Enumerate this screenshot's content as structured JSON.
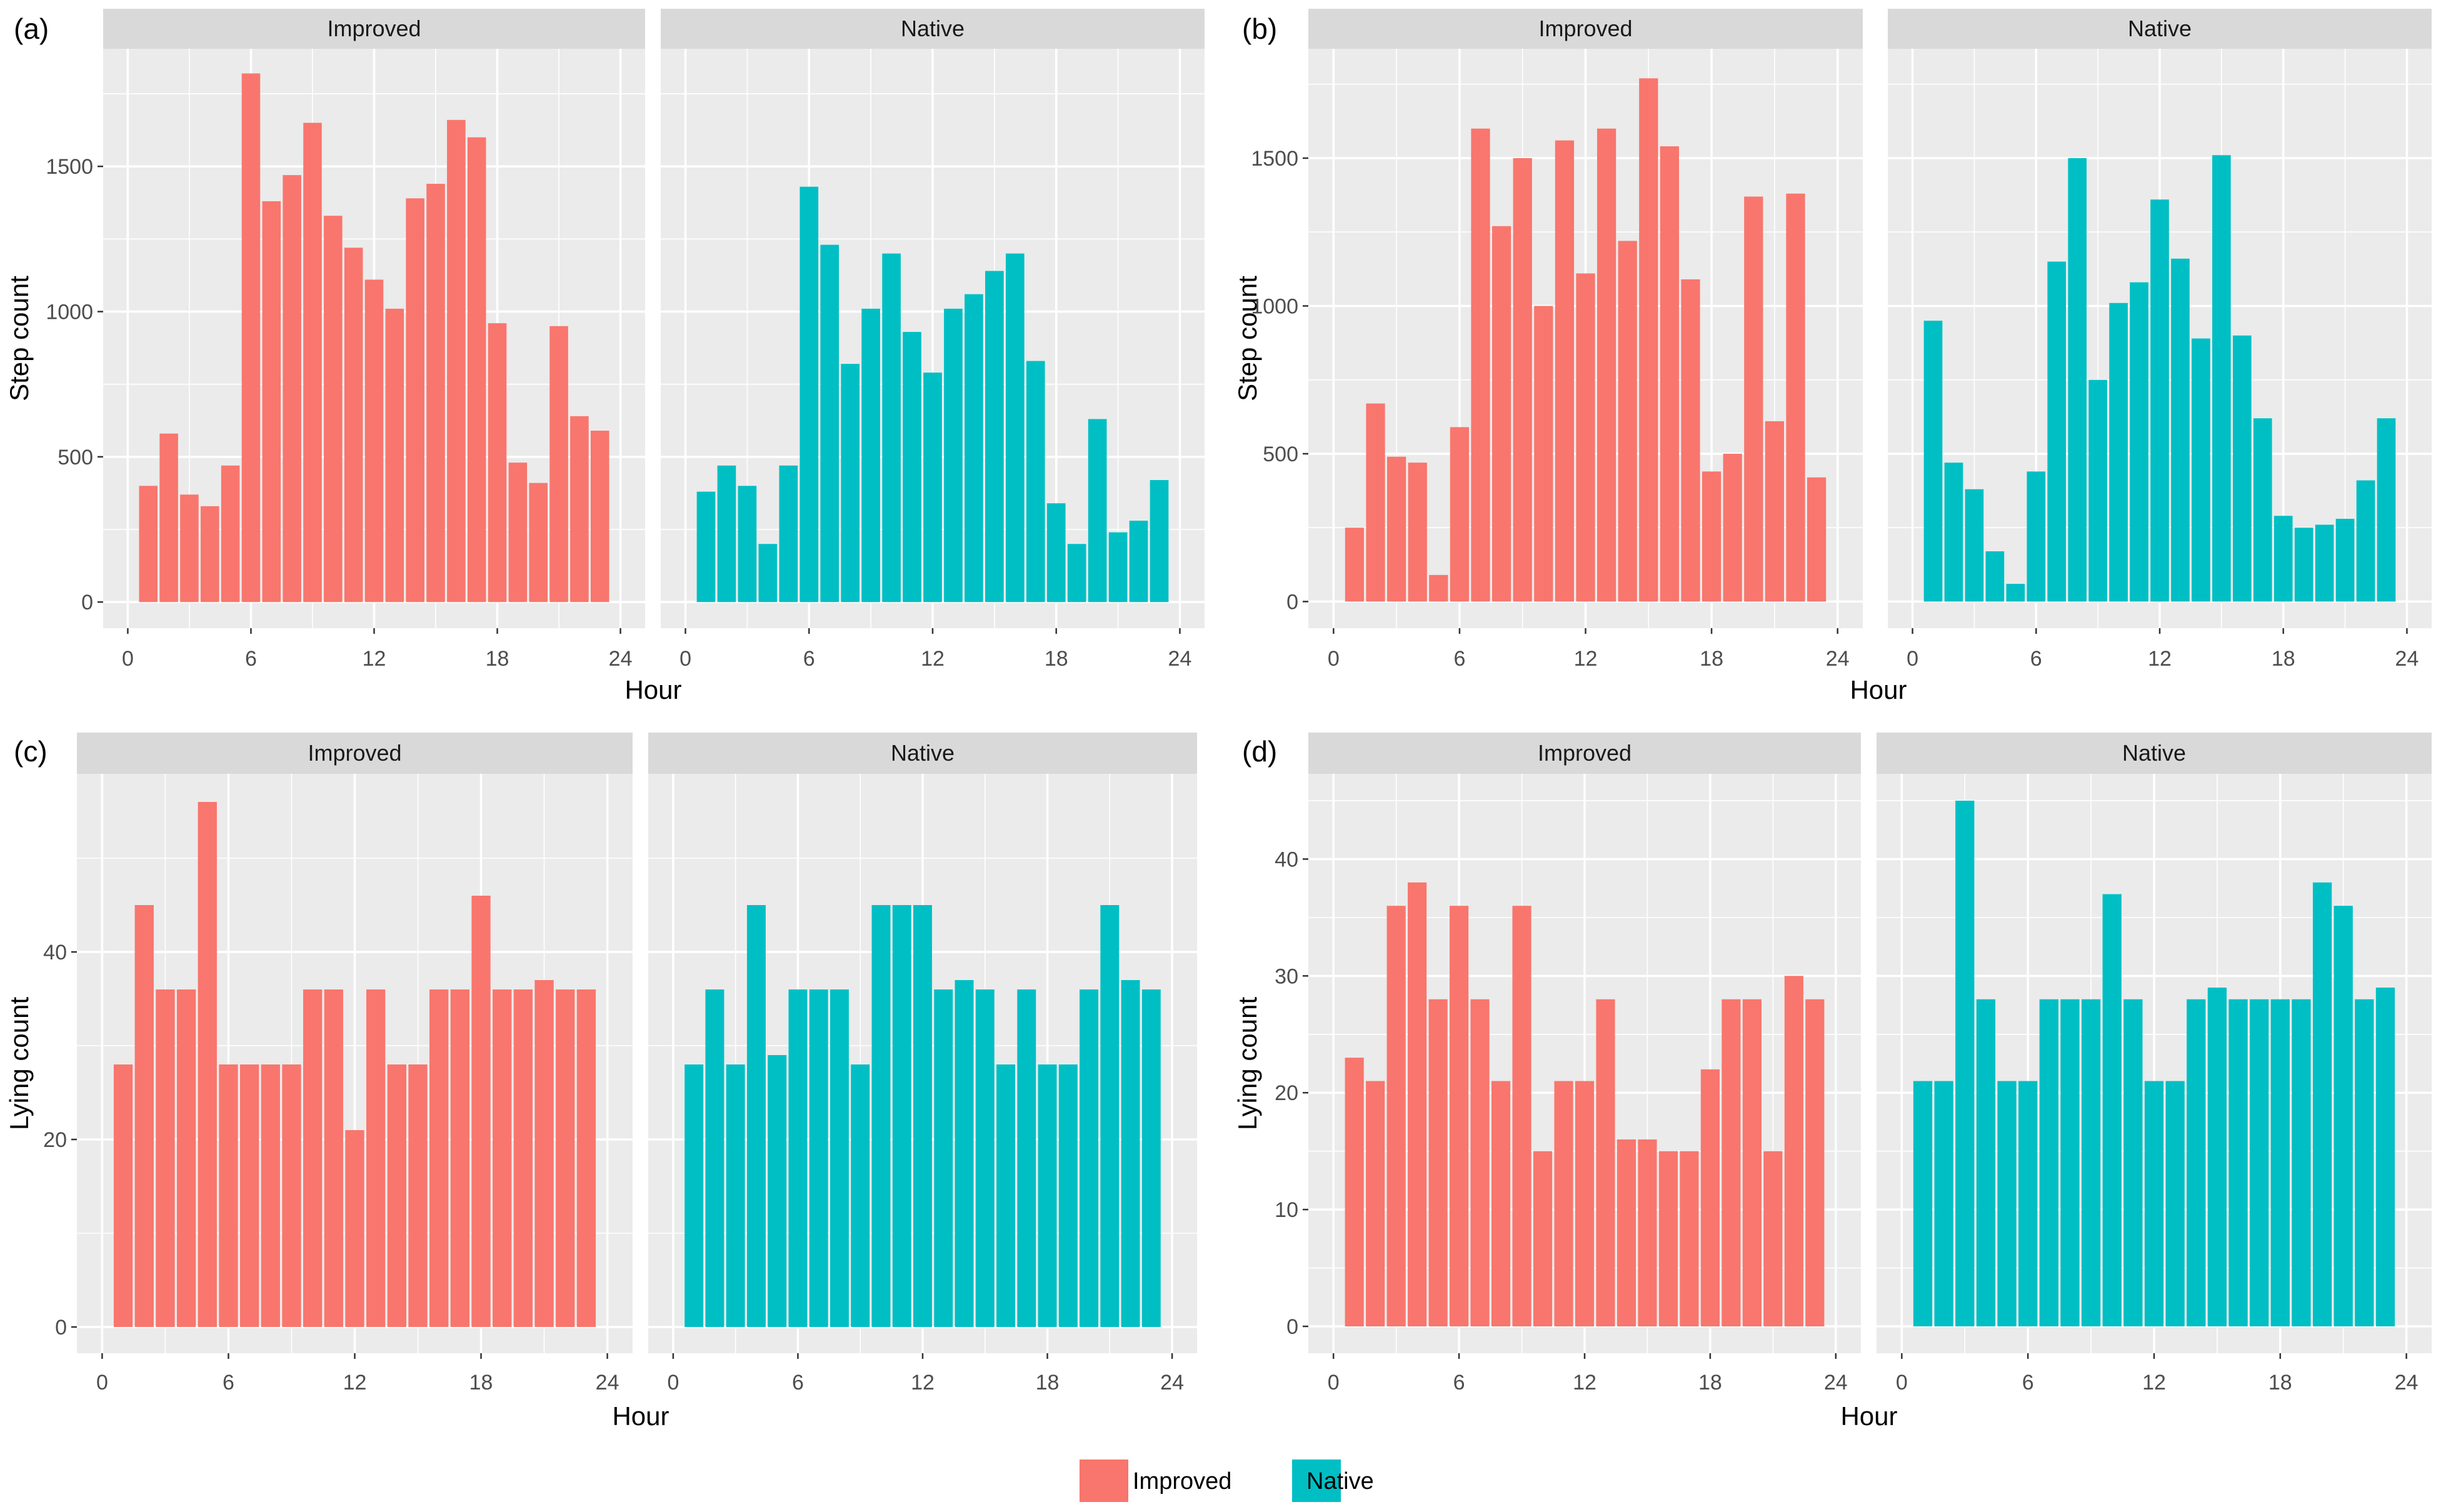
{
  "chart_data": [
    {
      "type": "bar",
      "panel_label": "(a)",
      "xlabel": "Hour",
      "ylabel": "Step count",
      "xlim": [
        -1.2,
        25.2
      ],
      "ylim": [
        -90,
        1905
      ],
      "x_ticks": [
        0,
        6,
        12,
        18,
        24
      ],
      "y_ticks": [
        0,
        500,
        1000,
        1500
      ],
      "facets": [
        {
          "name": "Improved",
          "color": "#F8766D",
          "x": [
            1,
            2,
            3,
            4,
            5,
            6,
            7,
            8,
            9,
            10,
            11,
            12,
            13,
            14,
            15,
            16,
            17,
            18,
            19,
            20,
            21,
            22,
            23
          ],
          "values": [
            400,
            580,
            370,
            330,
            470,
            1820,
            1380,
            1470,
            1650,
            1330,
            1220,
            1110,
            1010,
            1390,
            1440,
            1660,
            1600,
            960,
            480,
            410,
            950,
            640,
            590
          ]
        },
        {
          "name": "Native",
          "color": "#00BFC4",
          "x": [
            1,
            2,
            3,
            4,
            5,
            6,
            7,
            8,
            9,
            10,
            11,
            12,
            13,
            14,
            15,
            16,
            17,
            18,
            19,
            20,
            21,
            22,
            23
          ],
          "values": [
            380,
            470,
            400,
            200,
            470,
            1430,
            1230,
            820,
            1010,
            1200,
            930,
            790,
            1010,
            1060,
            1140,
            1200,
            830,
            340,
            200,
            630,
            240,
            280,
            420
          ]
        }
      ]
    },
    {
      "type": "bar",
      "panel_label": "(b)",
      "xlabel": "Hour",
      "ylabel": "Step count",
      "xlim": [
        -1.2,
        25.2
      ],
      "ylim": [
        -90,
        1870
      ],
      "x_ticks": [
        0,
        6,
        12,
        18,
        24
      ],
      "y_ticks": [
        0,
        500,
        1000,
        1500
      ],
      "facets": [
        {
          "name": "Improved",
          "color": "#F8766D",
          "x": [
            1,
            2,
            3,
            4,
            5,
            6,
            7,
            8,
            9,
            10,
            11,
            12,
            13,
            14,
            15,
            16,
            17,
            18,
            19,
            20,
            21,
            22,
            23
          ],
          "values": [
            250,
            670,
            490,
            470,
            90,
            590,
            1600,
            1270,
            1500,
            1000,
            1560,
            1110,
            1600,
            1220,
            1770,
            1540,
            1090,
            440,
            500,
            1370,
            610,
            1380,
            420
          ]
        },
        {
          "name": "Native",
          "color": "#00BFC4",
          "x": [
            1,
            2,
            3,
            4,
            5,
            6,
            7,
            8,
            9,
            10,
            11,
            12,
            13,
            14,
            15,
            16,
            17,
            18,
            19,
            20,
            21,
            22,
            23
          ],
          "values": [
            950,
            470,
            380,
            170,
            60,
            440,
            1150,
            1500,
            750,
            1010,
            1080,
            1360,
            1160,
            890,
            1510,
            900,
            620,
            290,
            250,
            260,
            280,
            410,
            620
          ]
        }
      ]
    },
    {
      "type": "bar",
      "panel_label": "(c)",
      "xlabel": "Hour",
      "ylabel": "Lying  count",
      "xlim": [
        -1.2,
        25.2
      ],
      "ylim": [
        -2.8,
        59
      ],
      "x_ticks": [
        0,
        6,
        12,
        18,
        24
      ],
      "y_ticks": [
        0,
        20,
        40
      ],
      "facets": [
        {
          "name": "Improved",
          "color": "#F8766D",
          "x": [
            1,
            2,
            3,
            4,
            5,
            6,
            7,
            8,
            9,
            10,
            11,
            12,
            13,
            14,
            15,
            16,
            17,
            18,
            19,
            20,
            21,
            22,
            23
          ],
          "values": [
            28,
            45,
            36,
            36,
            56,
            28,
            28,
            28,
            28,
            36,
            36,
            21,
            36,
            28,
            28,
            36,
            36,
            46,
            36,
            36,
            37,
            36,
            36
          ]
        },
        {
          "name": "Native",
          "color": "#00BFC4",
          "x": [
            1,
            2,
            3,
            4,
            5,
            6,
            7,
            8,
            9,
            10,
            11,
            12,
            13,
            14,
            15,
            16,
            17,
            18,
            19,
            20,
            21,
            22,
            23
          ],
          "values": [
            28,
            36,
            28,
            45,
            29,
            36,
            36,
            36,
            28,
            45,
            45,
            45,
            36,
            37,
            36,
            28,
            36,
            28,
            28,
            36,
            45,
            37,
            36
          ]
        }
      ]
    },
    {
      "type": "bar",
      "panel_label": "(d)",
      "xlabel": "Hour",
      "ylabel": "Lying count",
      "xlim": [
        -1.2,
        25.2
      ],
      "ylim": [
        -2.3,
        47.3
      ],
      "x_ticks": [
        0,
        6,
        12,
        18,
        24
      ],
      "y_ticks": [
        0,
        10,
        20,
        30,
        40
      ],
      "facets": [
        {
          "name": "Improved",
          "color": "#F8766D",
          "x": [
            1,
            2,
            3,
            4,
            5,
            6,
            7,
            8,
            9,
            10,
            11,
            12,
            13,
            14,
            15,
            16,
            17,
            18,
            19,
            20,
            21,
            22,
            23
          ],
          "values": [
            23,
            21,
            36,
            38,
            28,
            36,
            28,
            21,
            36,
            15,
            21,
            21,
            28,
            16,
            16,
            15,
            15,
            22,
            28,
            28,
            15,
            30,
            28
          ]
        },
        {
          "name": "Native",
          "color": "#00BFC4",
          "x": [
            1,
            2,
            3,
            4,
            5,
            6,
            7,
            8,
            9,
            10,
            11,
            12,
            13,
            14,
            15,
            16,
            17,
            18,
            19,
            20,
            21,
            22,
            23
          ],
          "values": [
            21,
            21,
            45,
            28,
            21,
            21,
            28,
            28,
            28,
            37,
            28,
            21,
            21,
            28,
            29,
            28,
            28,
            28,
            28,
            38,
            36,
            28,
            29
          ]
        }
      ]
    }
  ],
  "legend": {
    "items": [
      {
        "label": "Improved",
        "color": "#F8766D"
      },
      {
        "label": "Native",
        "color": "#00BFC4"
      }
    ]
  }
}
